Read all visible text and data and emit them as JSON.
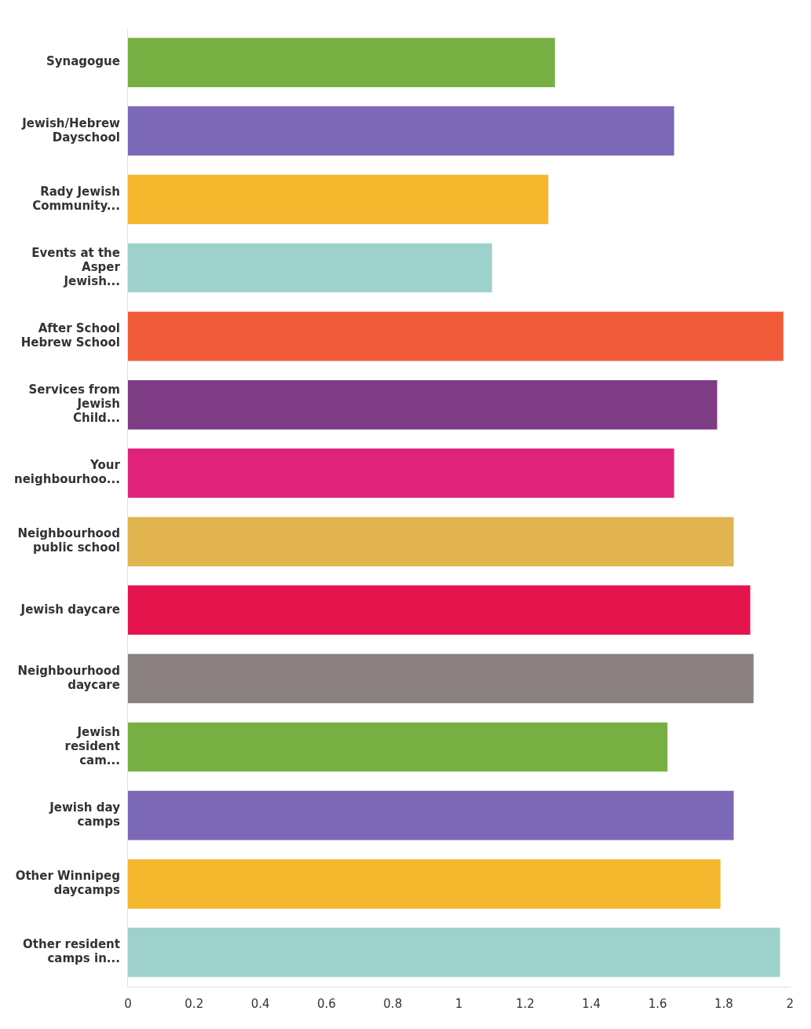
{
  "chart_data": {
    "type": "bar",
    "orientation": "horizontal",
    "categories": [
      "Synagogue",
      "Jewish/Hebrew Dayschool",
      "Rady Jewish Community...",
      "Events at the Asper Jewish...",
      "After School Hebrew School",
      "Services from Jewish Child...",
      "Your neighbourhoo...",
      "Neighbourhood public school",
      "Jewish daycare",
      "Neighbourhood daycare",
      "Jewish resident cam...",
      "Jewish day camps",
      "Other Winnipeg daycamps",
      "Other resident camps in..."
    ],
    "values": [
      1.29,
      1.65,
      1.27,
      1.1,
      1.98,
      1.78,
      1.65,
      1.83,
      1.88,
      1.89,
      1.63,
      1.83,
      1.79,
      1.97
    ],
    "colors": [
      "#76b043",
      "#7b69b8",
      "#f4b72e",
      "#9fd1cc",
      "#f25b3a",
      "#7d3c83",
      "#e0237a",
      "#e2b550",
      "#e3134b",
      "#8a8080",
      "#76b043",
      "#7b69b8",
      "#f4b72e",
      "#9fd1cc"
    ],
    "xlim": [
      0,
      2
    ],
    "xticks": [
      0,
      0.2,
      0.4,
      0.6,
      0.8,
      1,
      1.2,
      1.4,
      1.6,
      1.8,
      2
    ],
    "grid": false,
    "legend": false
  }
}
